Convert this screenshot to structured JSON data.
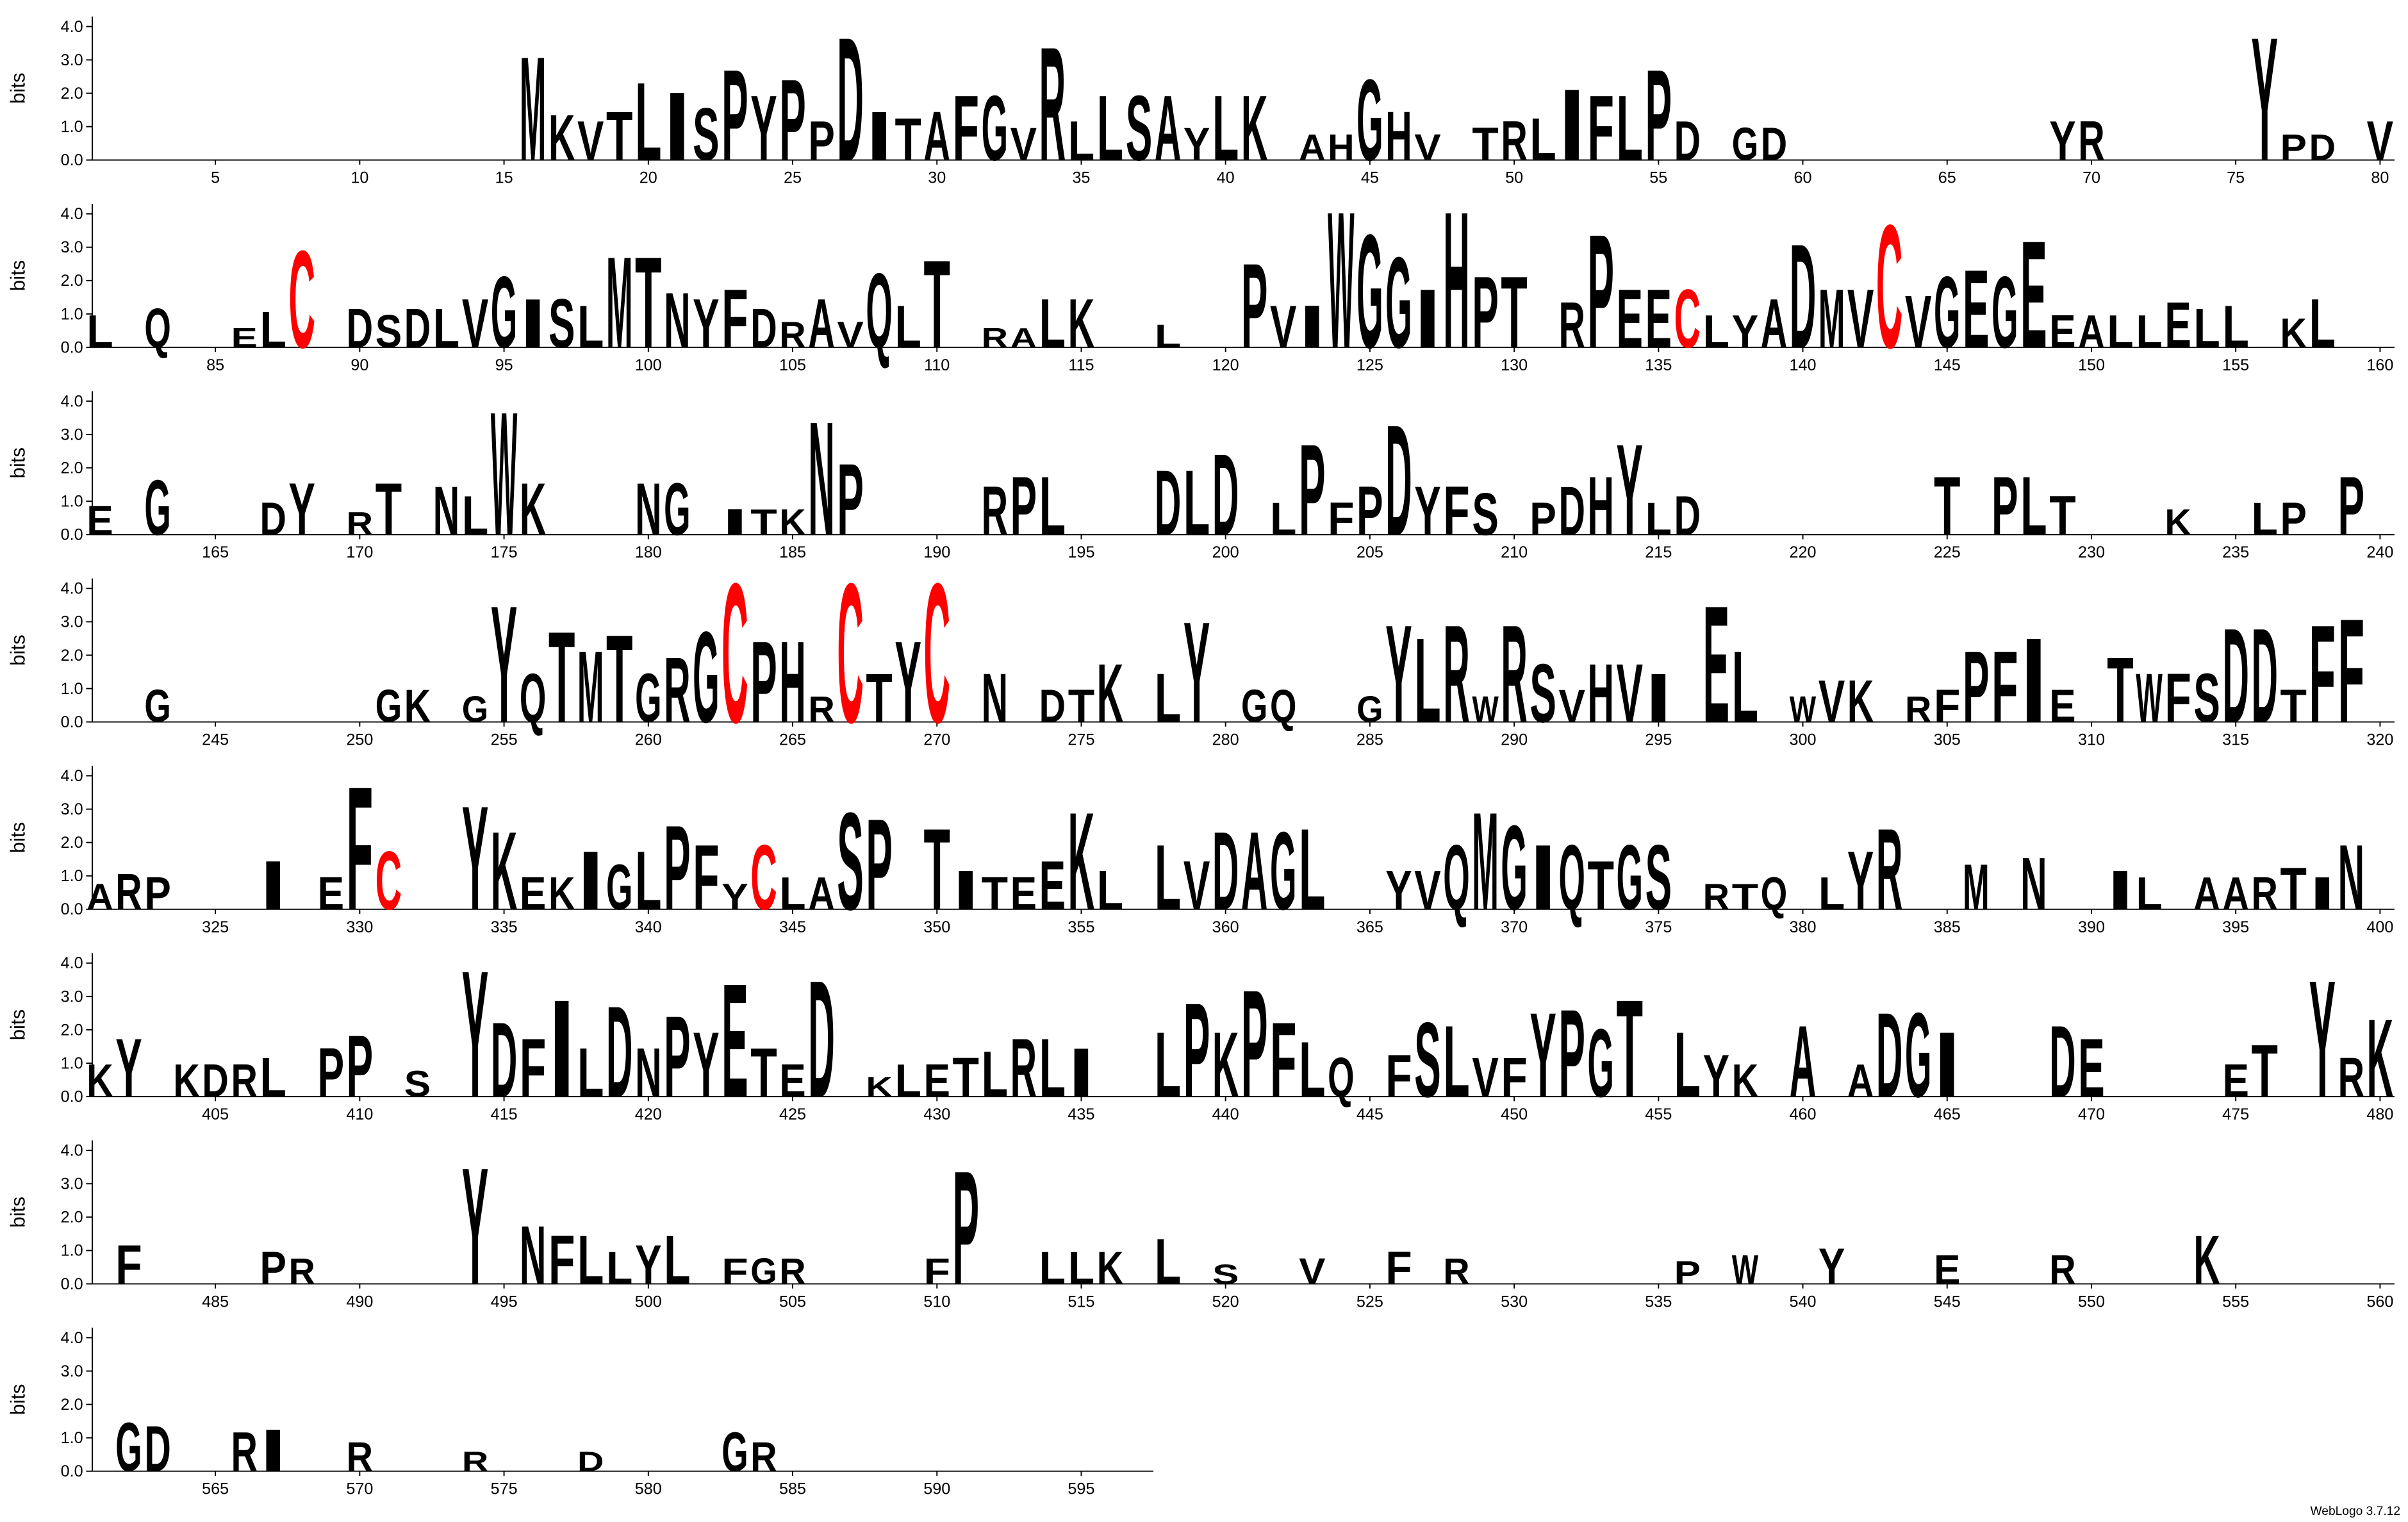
{
  "chart_data": {
    "type": "logo",
    "y_label": "bits",
    "credit": "WebLogo 3.7.12",
    "xlim": [
      1,
      597
    ],
    "ylim": [
      0,
      4.3
    ],
    "yticks": [
      {
        "value": 0,
        "label": "0.0"
      },
      {
        "value": 1,
        "label": "1.0"
      },
      {
        "value": 2,
        "label": "2.0"
      },
      {
        "value": 3,
        "label": "3.0"
      },
      {
        "value": 4,
        "label": "4.0"
      }
    ],
    "xticks": [
      5,
      10,
      15,
      20,
      25,
      30,
      35,
      40,
      45,
      50,
      55,
      60,
      65,
      70,
      75,
      80,
      85,
      90,
      95,
      100,
      105,
      110,
      115,
      120,
      125,
      130,
      135,
      140,
      145,
      150,
      155,
      160,
      165,
      170,
      175,
      180,
      185,
      190,
      195,
      200,
      205,
      210,
      215,
      220,
      225,
      230,
      235,
      240,
      245,
      250,
      255,
      260,
      265,
      270,
      275,
      280,
      285,
      290,
      295,
      300,
      305,
      310,
      315,
      320,
      325,
      330,
      335,
      340,
      345,
      350,
      355,
      360,
      365,
      370,
      375,
      380,
      385,
      390,
      395,
      400,
      405,
      410,
      415,
      420,
      425,
      430,
      435,
      440,
      445,
      450,
      455,
      460,
      465,
      470,
      475,
      480,
      485,
      490,
      495,
      500,
      505,
      510,
      515,
      520,
      525,
      530,
      535,
      540,
      545,
      550,
      555,
      560,
      565,
      570,
      575,
      580,
      585,
      590,
      595
    ],
    "default_color": "#000000",
    "colors": {
      "C": "#ff0000"
    },
    "x": [
      16,
      17,
      18,
      19,
      20,
      21,
      22,
      23,
      24,
      25,
      26,
      27,
      28,
      29,
      30,
      31,
      32,
      33,
      34,
      35,
      36,
      37,
      38,
      39,
      40,
      41,
      43,
      44,
      45,
      46,
      47,
      49,
      50,
      51,
      52,
      53,
      54,
      55,
      56,
      58,
      59,
      69,
      70,
      76,
      77,
      78,
      80,
      81,
      83,
      86,
      87,
      88,
      90,
      91,
      92,
      93,
      94,
      95,
      96,
      97,
      98,
      99,
      100,
      101,
      102,
      103,
      104,
      105,
      106,
      107,
      108,
      109,
      110,
      112,
      113,
      114,
      115,
      118,
      121,
      122,
      123,
      124,
      125,
      126,
      127,
      128,
      129,
      130,
      132,
      133,
      134,
      135,
      136,
      137,
      138,
      139,
      140,
      141,
      142,
      143,
      144,
      145,
      146,
      147,
      148,
      149,
      150,
      151,
      152,
      153,
      154,
      155,
      157,
      158,
      161,
      163,
      167,
      168,
      170,
      171,
      173,
      174,
      175,
      176,
      180,
      181,
      183,
      184,
      185,
      186,
      187,
      192,
      193,
      194,
      198,
      199,
      200,
      202,
      203,
      204,
      205,
      206,
      207,
      208,
      209,
      211,
      212,
      213,
      214,
      215,
      216,
      225,
      227,
      228,
      229,
      233,
      236,
      237,
      239,
      243,
      251,
      252,
      254,
      255,
      256,
      257,
      258,
      259,
      260,
      261,
      262,
      263,
      264,
      265,
      266,
      267,
      268,
      269,
      270,
      272,
      274,
      275,
      276,
      278,
      279,
      281,
      282,
      285,
      286,
      287,
      288,
      289,
      290,
      291,
      292,
      293,
      294,
      295,
      297,
      298,
      300,
      301,
      302,
      304,
      305,
      306,
      307,
      308,
      309,
      311,
      312,
      313,
      314,
      315,
      316,
      317,
      318,
      319,
      321,
      322,
      323,
      327,
      329,
      330,
      331,
      334,
      335,
      336,
      337,
      338,
      339,
      340,
      341,
      342,
      343,
      344,
      345,
      346,
      347,
      348,
      350,
      351,
      352,
      353,
      354,
      355,
      356,
      358,
      359,
      360,
      361,
      362,
      363,
      366,
      367,
      368,
      369,
      370,
      371,
      372,
      373,
      374,
      375,
      377,
      378,
      379,
      381,
      382,
      383,
      386,
      388,
      391,
      392,
      394,
      395,
      396,
      397,
      398,
      399,
      401,
      402,
      404,
      405,
      406,
      407,
      409,
      410,
      412,
      414,
      415,
      416,
      417,
      418,
      419,
      420,
      421,
      422,
      423,
      424,
      425,
      426,
      428,
      429,
      430,
      431,
      432,
      433,
      434,
      435,
      438,
      439,
      440,
      441,
      442,
      443,
      444,
      446,
      447,
      448,
      449,
      450,
      451,
      452,
      453,
      454,
      456,
      457,
      458,
      460,
      462,
      463,
      464,
      465,
      469,
      470,
      475,
      476,
      478,
      479,
      480,
      482,
      487,
      488,
      494,
      496,
      497,
      498,
      499,
      500,
      501,
      503,
      504,
      505,
      510,
      511,
      514,
      515,
      516,
      518,
      520,
      523,
      526,
      528,
      536,
      538,
      541,
      545,
      549,
      554,
      562,
      563,
      566,
      567,
      570,
      574,
      578,
      583,
      584
    ],
    "letters": [
      "M",
      "K",
      "V",
      "T",
      "L",
      "I",
      "S",
      "P",
      "Y",
      "P",
      "P",
      "D",
      "I",
      "T",
      "A",
      "F",
      "G",
      "V",
      "R",
      "L",
      "L",
      "S",
      "A",
      "Y",
      "L",
      "K",
      "A",
      "H",
      "G",
      "H",
      "V",
      "T",
      "R",
      "L",
      "I",
      "F",
      "L",
      "P",
      "D",
      "G",
      "D",
      "Y",
      "R",
      "Y",
      "P",
      "D",
      "V",
      "L",
      "Q",
      "E",
      "L",
      "C",
      "D",
      "S",
      "D",
      "L",
      "V",
      "G",
      "I",
      "S",
      "L",
      "M",
      "T",
      "N",
      "Y",
      "F",
      "D",
      "R",
      "A",
      "V",
      "Q",
      "L",
      "T",
      "R",
      "A",
      "L",
      "K",
      "L",
      "P",
      "V",
      "I",
      "W",
      "G",
      "G",
      "I",
      "H",
      "P",
      "T",
      "R",
      "P",
      "E",
      "E",
      "C",
      "L",
      "Y",
      "A",
      "D",
      "M",
      "V",
      "C",
      "V",
      "G",
      "E",
      "G",
      "E",
      "E",
      "A",
      "L",
      "L",
      "E",
      "L",
      "L",
      "K",
      "L",
      "E",
      "G",
      "D",
      "Y",
      "R",
      "T",
      "N",
      "L",
      "W",
      "K",
      "N",
      "G",
      "I",
      "T",
      "K",
      "N",
      "P",
      "R",
      "P",
      "L",
      "D",
      "L",
      "D",
      "L",
      "P",
      "F",
      "P",
      "D",
      "Y",
      "F",
      "S",
      "P",
      "D",
      "H",
      "Y",
      "L",
      "D",
      "T",
      "P",
      "L",
      "T",
      "K",
      "L",
      "P",
      "P",
      "G",
      "G",
      "K",
      "G",
      "Y",
      "Q",
      "T",
      "M",
      "T",
      "G",
      "R",
      "G",
      "C",
      "P",
      "H",
      "R",
      "C",
      "T",
      "Y",
      "C",
      "N",
      "D",
      "T",
      "K",
      "L",
      "Y",
      "G",
      "Q",
      "G",
      "Y",
      "L",
      "R",
      "W",
      "R",
      "S",
      "V",
      "H",
      "V",
      "I",
      "E",
      "L",
      "W",
      "V",
      "K",
      "R",
      "F",
      "P",
      "F",
      "I",
      "E",
      "T",
      "W",
      "F",
      "S",
      "D",
      "D",
      "T",
      "F",
      "F",
      "A",
      "R",
      "P",
      "I",
      "E",
      "F",
      "C",
      "Y",
      "K",
      "E",
      "K",
      "I",
      "G",
      "L",
      "P",
      "F",
      "Y",
      "C",
      "L",
      "A",
      "S",
      "P",
      "T",
      "I",
      "T",
      "E",
      "E",
      "K",
      "L",
      "L",
      "V",
      "D",
      "A",
      "G",
      "L",
      "Y",
      "V",
      "Q",
      "M",
      "G",
      "I",
      "Q",
      "T",
      "G",
      "S",
      "R",
      "T",
      "Q",
      "L",
      "Y",
      "R",
      "M",
      "N",
      "I",
      "L",
      "A",
      "A",
      "R",
      "T",
      "I",
      "N",
      "K",
      "Y",
      "K",
      "D",
      "R",
      "L",
      "P",
      "P",
      "S",
      "Y",
      "D",
      "F",
      "I",
      "L",
      "D",
      "N",
      "P",
      "Y",
      "E",
      "T",
      "E",
      "D",
      "K",
      "L",
      "E",
      "T",
      "L",
      "R",
      "L",
      "I",
      "L",
      "P",
      "K",
      "P",
      "F",
      "L",
      "Q",
      "F",
      "S",
      "L",
      "V",
      "F",
      "Y",
      "P",
      "G",
      "T",
      "L",
      "Y",
      "K",
      "A",
      "A",
      "D",
      "G",
      "I",
      "D",
      "E",
      "E",
      "T",
      "Y",
      "R",
      "K",
      "F",
      "P",
      "R",
      "Y",
      "N",
      "F",
      "L",
      "L",
      "Y",
      "L",
      "F",
      "G",
      "R",
      "F",
      "P",
      "L",
      "L",
      "K",
      "L",
      "S",
      "V",
      "F",
      "R",
      "P",
      "W",
      "Y",
      "E",
      "R",
      "K",
      "G",
      "D",
      "R",
      "I",
      "R",
      "R",
      "D",
      "G",
      "R"
    ],
    "values": [
      3.2,
      1.4,
      1.2,
      1.5,
      2.4,
      2.1,
      1.6,
      2.8,
      2.0,
      2.5,
      1.2,
      3.8,
      1.5,
      1.3,
      1.5,
      2.0,
      2.0,
      1.0,
      3.5,
      1.2,
      2.0,
      2.0,
      2.0,
      1.0,
      2.0,
      2.0,
      0.8,
      0.8,
      2.5,
      1.5,
      0.8,
      1.0,
      1.2,
      1.3,
      2.2,
      2.0,
      2.0,
      2.8,
      1.2,
      1.0,
      1.0,
      1.2,
      1.2,
      3.8,
      0.8,
      0.8,
      1.2,
      1.0,
      1.2,
      0.6,
      1.1,
      3.0,
      1.2,
      1.0,
      1.2,
      1.2,
      1.5,
      2.2,
      1.5,
      1.5,
      1.3,
      2.8,
      2.8,
      1.7,
      1.5,
      1.8,
      1.2,
      0.8,
      1.5,
      0.8,
      2.3,
      1.3,
      2.7,
      0.6,
      0.6,
      1.5,
      1.5,
      0.7,
      2.6,
      1.3,
      1.3,
      4.2,
      3.5,
      2.8,
      1.8,
      4.2,
      2.2,
      2.2,
      1.4,
      3.5,
      1.8,
      1.8,
      1.8,
      1.0,
      1.0,
      1.5,
      3.2,
      1.8,
      1.8,
      3.8,
      1.6,
      2.2,
      2.4,
      2.2,
      3.3,
      1.0,
      1.0,
      1.0,
      1.0,
      1.4,
      1.2,
      1.3,
      0.9,
      1.5,
      0.9,
      1.7,
      1.0,
      1.6,
      0.7,
      1.6,
      1.5,
      1.2,
      3.8,
      1.6,
      1.6,
      1.6,
      0.8,
      0.8,
      0.8,
      3.5,
      2.2,
      1.5,
      1.8,
      1.8,
      2.0,
      2.0,
      2.5,
      1.0,
      2.8,
      1.0,
      1.5,
      3.4,
      1.5,
      1.5,
      1.3,
      1.0,
      1.5,
      1.8,
      2.8,
      1.0,
      1.2,
      1.8,
      1.8,
      1.8,
      1.2,
      0.8,
      1.0,
      1.0,
      1.8,
      1.0,
      1.0,
      1.0,
      0.8,
      3.6,
      1.5,
      2.8,
      2.2,
      2.7,
      1.5,
      2.0,
      2.8,
      4.3,
      2.5,
      2.5,
      0.8,
      4.3,
      1.5,
      2.5,
      4.3,
      1.5,
      1.0,
      1.0,
      1.8,
      1.5,
      3.1,
      1.0,
      1.0,
      0.8,
      3.0,
      2.6,
      3.0,
      0.8,
      3.0,
      1.8,
      1.0,
      1.8,
      1.8,
      1.5,
      3.6,
      2.2,
      0.8,
      1.3,
      1.3,
      0.8,
      1.0,
      2.2,
      2.2,
      2.6,
      1.0,
      2.0,
      1.5,
      1.5,
      1.5,
      2.9,
      2.9,
      1.0,
      3.0,
      3.2,
      0.8,
      1.1,
      1.0,
      1.5,
      1.0,
      3.8,
      1.8,
      3.2,
      2.4,
      1.0,
      1.0,
      1.8,
      1.4,
      1.8,
      2.6,
      2.0,
      0.8,
      2.0,
      1.0,
      1.0,
      3.0,
      2.8,
      2.5,
      1.2,
      1.0,
      1.0,
      1.5,
      3.0,
      1.2,
      2.0,
      1.5,
      2.4,
      2.4,
      2.4,
      2.5,
      1.2,
      1.2,
      2.0,
      3.0,
      2.6,
      2.0,
      2.0,
      1.5,
      2.0,
      2.0,
      0.8,
      0.8,
      1.0,
      1.0,
      1.8,
      2.5,
      1.4,
      1.6,
      1.2,
      1.0,
      1.0,
      1.0,
      1.0,
      1.3,
      1.0,
      2.0,
      1.0,
      1.8,
      1.0,
      1.0,
      1.0,
      1.2,
      1.5,
      1.9,
      0.8,
      3.9,
      2.3,
      1.8,
      3.0,
      1.5,
      2.8,
      1.5,
      2.5,
      2.0,
      3.5,
      1.5,
      1.0,
      3.6,
      0.6,
      1.0,
      1.0,
      1.2,
      1.4,
      1.8,
      1.8,
      1.5,
      2.0,
      2.9,
      2.0,
      3.3,
      2.3,
      1.7,
      1.2,
      1.3,
      2.3,
      2.2,
      1.2,
      1.2,
      2.6,
      2.7,
      2.1,
      3.0,
      2.0,
      1.3,
      1.0,
      2.2,
      1.0,
      2.6,
      2.6,
      2.0,
      2.2,
      1.8,
      1.0,
      1.6,
      3.6,
      1.2,
      2.4,
      1.2,
      1.0,
      0.8,
      3.6,
      1.8,
      1.5,
      1.5,
      1.0,
      1.2,
      1.5,
      0.8,
      0.8,
      0.8,
      0.8,
      3.5,
      1.0,
      1.0,
      1.0,
      1.4,
      0.6,
      0.8,
      1.0,
      0.8,
      0.7,
      0.9,
      1.1,
      0.9,
      0.9,
      1.5,
      1.5,
      1.4,
      1.2,
      1.3,
      0.9,
      0.6,
      0.6,
      1.2,
      0.9
    ]
  }
}
